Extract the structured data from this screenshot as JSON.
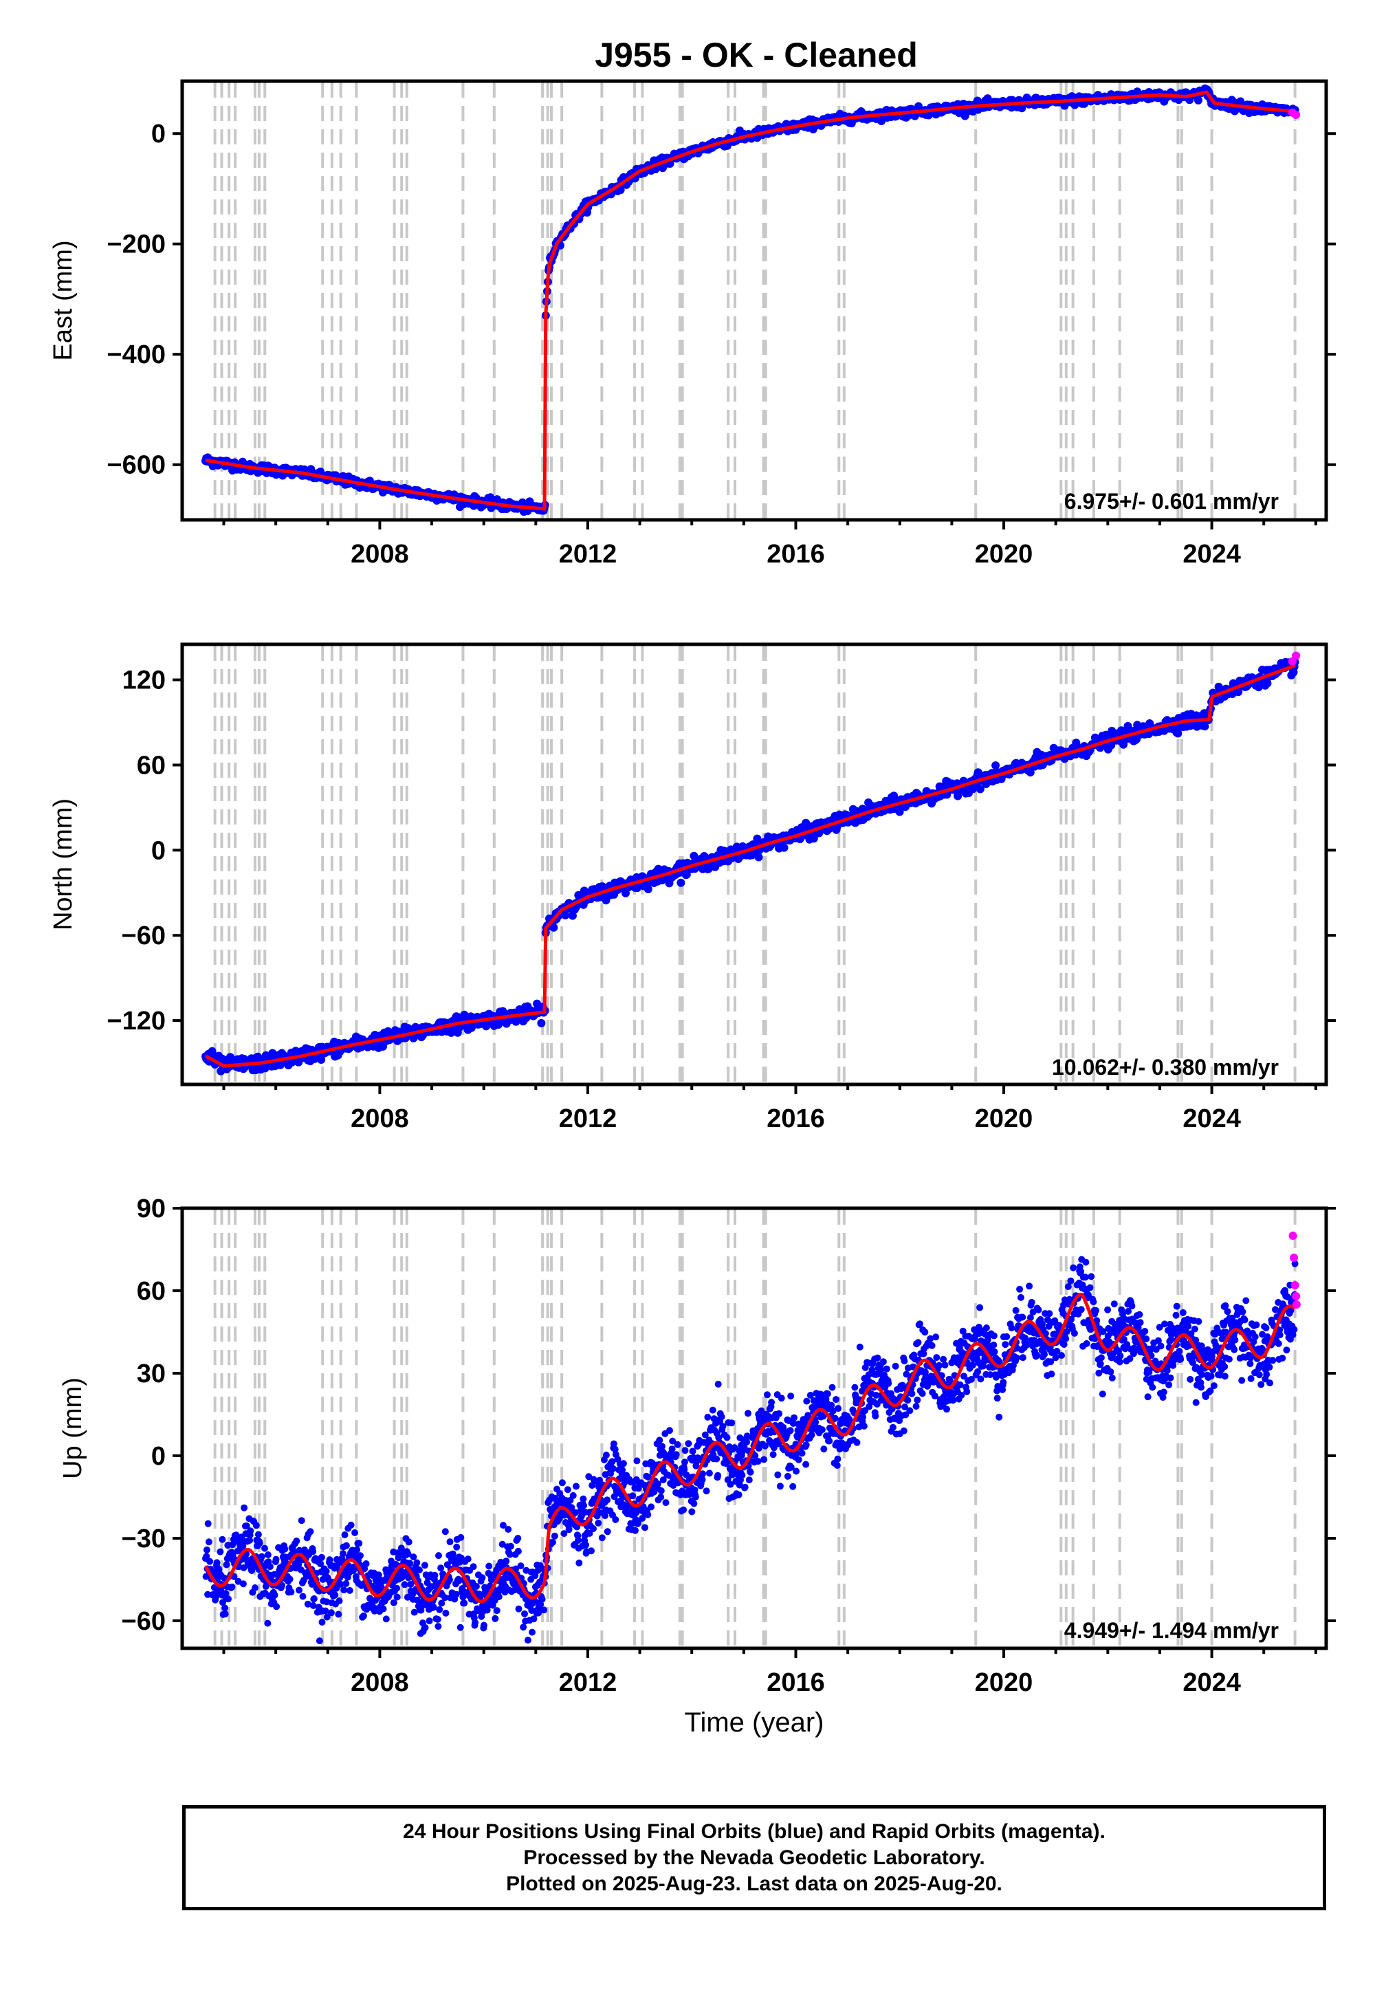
{
  "title": "J955  - OK - Cleaned",
  "xlabel": "Time (year)",
  "colors": {
    "final_orbits": "#0000ff",
    "rapid_orbits": "#ff00ff",
    "model": "#ff0000",
    "event_lines": "#c8c8c8"
  },
  "footer": {
    "line1": "24 Hour Positions Using Final Orbits (blue) and Rapid Orbits (magenta).",
    "line2": "Processed by the Nevada Geodetic Laboratory.",
    "line3": "Plotted on 2025-Aug-23. Last data on 2025-Aug-20."
  },
  "chart_data": [
    {
      "type": "scatter",
      "component": "East",
      "ylabel": "East (mm)",
      "xlim": [
        2004.2,
        2026.2
      ],
      "ylim": [
        -700,
        95
      ],
      "yticks": [
        0,
        -200,
        -400,
        -600
      ],
      "xticks": [
        2008,
        2012,
        2016,
        2020,
        2024
      ],
      "grid": false,
      "rate_label": "6.975+/- 0.601 mm/yr",
      "trend_knots": [
        [
          2004.65,
          -592
        ],
        [
          2005.5,
          -605
        ],
        [
          2006.5,
          -615
        ],
        [
          2007.5,
          -632
        ],
        [
          2008.5,
          -648
        ],
        [
          2009.5,
          -662
        ],
        [
          2010.5,
          -675
        ],
        [
          2011.18,
          -680
        ],
        [
          2011.19,
          -330
        ],
        [
          2011.25,
          -240
        ],
        [
          2011.4,
          -200
        ],
        [
          2011.7,
          -162
        ],
        [
          2012.0,
          -128
        ],
        [
          2012.5,
          -100
        ],
        [
          2013.0,
          -68
        ],
        [
          2013.5,
          -50
        ],
        [
          2014.0,
          -33
        ],
        [
          2014.5,
          -18
        ],
        [
          2015.0,
          -6
        ],
        [
          2015.5,
          4
        ],
        [
          2016.0,
          13
        ],
        [
          2016.5,
          21
        ],
        [
          2017.0,
          28
        ],
        [
          2017.5,
          33
        ],
        [
          2018.0,
          37
        ],
        [
          2018.5,
          41
        ],
        [
          2019.0,
          46
        ],
        [
          2019.5,
          50
        ],
        [
          2020.0,
          53
        ],
        [
          2020.5,
          56
        ],
        [
          2021.0,
          58
        ],
        [
          2021.5,
          61
        ],
        [
          2022.0,
          64
        ],
        [
          2022.5,
          67
        ],
        [
          2023.0,
          70
        ],
        [
          2023.5,
          67
        ],
        [
          2023.9,
          75
        ],
        [
          2024.05,
          55
        ],
        [
          2024.5,
          50
        ],
        [
          2025.0,
          45
        ],
        [
          2025.6,
          40
        ]
      ],
      "noise_mm": 4,
      "rapid_x": [
        2025.55,
        2025.62
      ],
      "rapid_y": [
        38,
        34
      ]
    },
    {
      "type": "scatter",
      "component": "North",
      "ylabel": "North (mm)",
      "xlim": [
        2004.2,
        2026.2
      ],
      "ylim": [
        -165,
        145
      ],
      "yticks": [
        120,
        60,
        0,
        -60,
        -120
      ],
      "xticks": [
        2008,
        2012,
        2016,
        2020,
        2024
      ],
      "grid": false,
      "rate_label": "10.062+/- 0.380 mm/yr",
      "trend_knots": [
        [
          2004.65,
          -145
        ],
        [
          2005.0,
          -152
        ],
        [
          2005.7,
          -150
        ],
        [
          2006.5,
          -145
        ],
        [
          2007.5,
          -137
        ],
        [
          2008.5,
          -130
        ],
        [
          2009.5,
          -122
        ],
        [
          2010.5,
          -117
        ],
        [
          2011.18,
          -114
        ],
        [
          2011.19,
          -55
        ],
        [
          2011.5,
          -42
        ],
        [
          2012.0,
          -33
        ],
        [
          2012.5,
          -27
        ],
        [
          2013.0,
          -22
        ],
        [
          2013.5,
          -17
        ],
        [
          2014.0,
          -11
        ],
        [
          2014.5,
          -6
        ],
        [
          2015.0,
          -1
        ],
        [
          2015.5,
          5
        ],
        [
          2016.0,
          10
        ],
        [
          2016.5,
          16
        ],
        [
          2017.0,
          22
        ],
        [
          2017.5,
          28
        ],
        [
          2018.0,
          33
        ],
        [
          2018.5,
          38
        ],
        [
          2019.0,
          43
        ],
        [
          2019.5,
          49
        ],
        [
          2020.0,
          54
        ],
        [
          2020.5,
          60
        ],
        [
          2021.0,
          66
        ],
        [
          2021.5,
          71
        ],
        [
          2022.0,
          77
        ],
        [
          2022.5,
          82
        ],
        [
          2023.0,
          87
        ],
        [
          2023.5,
          91
        ],
        [
          2023.95,
          92
        ],
        [
          2024.0,
          108
        ],
        [
          2024.5,
          115
        ],
        [
          2025.0,
          122
        ],
        [
          2025.6,
          130
        ]
      ],
      "noise_mm": 2.5,
      "rapid_x": [
        2025.55,
        2025.62
      ],
      "rapid_y": [
        133,
        137
      ]
    },
    {
      "type": "scatter",
      "component": "Up",
      "ylabel": "Up (mm)",
      "xlim": [
        2004.2,
        2026.2
      ],
      "ylim": [
        -70,
        90
      ],
      "yticks": [
        90,
        60,
        30,
        0,
        -30,
        -60
      ],
      "xticks": [
        2008,
        2012,
        2016,
        2020,
        2024
      ],
      "grid": false,
      "rate_label": "4.949+/- 1.494 mm/yr",
      "trend_knots": [
        [
          2004.65,
          -42
        ],
        [
          2005.5,
          -40
        ],
        [
          2006.5,
          -42
        ],
        [
          2007.5,
          -44
        ],
        [
          2008.5,
          -46
        ],
        [
          2009.5,
          -47
        ],
        [
          2010.5,
          -47
        ],
        [
          2011.18,
          -45
        ],
        [
          2011.25,
          -28
        ],
        [
          2012.0,
          -18
        ],
        [
          2012.5,
          -14
        ],
        [
          2013.0,
          -12
        ],
        [
          2013.5,
          -8
        ],
        [
          2014.0,
          -4
        ],
        [
          2014.5,
          -1
        ],
        [
          2015.0,
          2
        ],
        [
          2015.5,
          6
        ],
        [
          2016.0,
          8
        ],
        [
          2016.5,
          11
        ],
        [
          2017.0,
          14
        ],
        [
          2017.5,
          20
        ],
        [
          2018.0,
          25
        ],
        [
          2018.5,
          29
        ],
        [
          2019.0,
          31
        ],
        [
          2019.5,
          35
        ],
        [
          2020.0,
          39
        ],
        [
          2020.5,
          43
        ],
        [
          2021.0,
          47
        ],
        [
          2021.5,
          53
        ],
        [
          2022.0,
          44
        ],
        [
          2022.5,
          40
        ],
        [
          2023.0,
          37
        ],
        [
          2023.5,
          38
        ],
        [
          2024.0,
          38
        ],
        [
          2024.5,
          40
        ],
        [
          2025.0,
          42
        ],
        [
          2025.6,
          50
        ]
      ],
      "seasonal_amp": 6,
      "noise_mm": 6,
      "rapid_x": [
        2025.56,
        2025.58,
        2025.6,
        2025.62,
        2025.63
      ],
      "rapid_y": [
        80,
        72,
        62,
        58,
        55
      ]
    }
  ],
  "event_lines": [
    2004.83,
    2004.96,
    2005.1,
    2005.22,
    2005.6,
    2005.68,
    2005.79,
    2006.9,
    2007.08,
    2007.25,
    2007.55,
    2008.28,
    2008.42,
    2008.52,
    2009.6,
    2010.2,
    2011.13,
    2011.23,
    2011.3,
    2011.5,
    2012.27,
    2012.9,
    2013.05,
    2013.77,
    2013.82,
    2014.7,
    2014.83,
    2015.38,
    2015.42,
    2016.83,
    2016.93,
    2019.46,
    2021.1,
    2021.2,
    2021.33,
    2021.73,
    2022.23,
    2023.35,
    2023.42,
    2024.0,
    2025.6
  ]
}
